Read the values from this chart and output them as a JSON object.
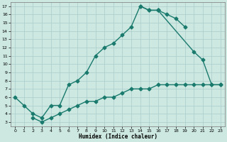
{
  "xlabel": "Humidex (Indice chaleur)",
  "background_color": "#cce8e0",
  "grid_color": "#aacccc",
  "line_color": "#1a7a6e",
  "xlim": [
    -0.5,
    23.5
  ],
  "ylim": [
    2.5,
    17.5
  ],
  "xticks": [
    0,
    1,
    2,
    3,
    4,
    5,
    6,
    7,
    8,
    9,
    10,
    11,
    12,
    13,
    14,
    15,
    16,
    17,
    18,
    19,
    20,
    21,
    22,
    23
  ],
  "yticks": [
    3,
    4,
    5,
    6,
    7,
    8,
    9,
    10,
    11,
    12,
    13,
    14,
    15,
    16,
    17
  ],
  "curve1_x": [
    0,
    1,
    2,
    3,
    4,
    5,
    6,
    7,
    8,
    9,
    10,
    11,
    12,
    13,
    14,
    15,
    16,
    17,
    18,
    19
  ],
  "curve1_y": [
    6.0,
    5.0,
    4.0,
    3.5,
    5.0,
    5.0,
    7.5,
    8.0,
    9.0,
    11.0,
    12.0,
    12.5,
    13.5,
    14.5,
    17.0,
    16.5,
    16.5,
    16.0,
    15.5,
    14.5
  ],
  "curve2_x": [
    14,
    15,
    16,
    20,
    21,
    22,
    23
  ],
  "curve2_y": [
    17.0,
    16.5,
    16.5,
    11.5,
    10.5,
    7.5,
    7.5
  ],
  "curve3_x": [
    2,
    3,
    4,
    5,
    6,
    7,
    8,
    9,
    10,
    11,
    12,
    13,
    14,
    15,
    16,
    17,
    18,
    19,
    20,
    21,
    22,
    23
  ],
  "curve3_y": [
    3.5,
    3.0,
    3.5,
    4.0,
    4.5,
    5.0,
    5.5,
    5.5,
    6.0,
    6.0,
    6.5,
    7.0,
    7.0,
    7.0,
    7.5,
    7.5,
    7.5,
    7.5,
    7.5,
    7.5,
    7.5,
    7.5
  ],
  "markersize": 2.5,
  "linewidth": 1.0
}
